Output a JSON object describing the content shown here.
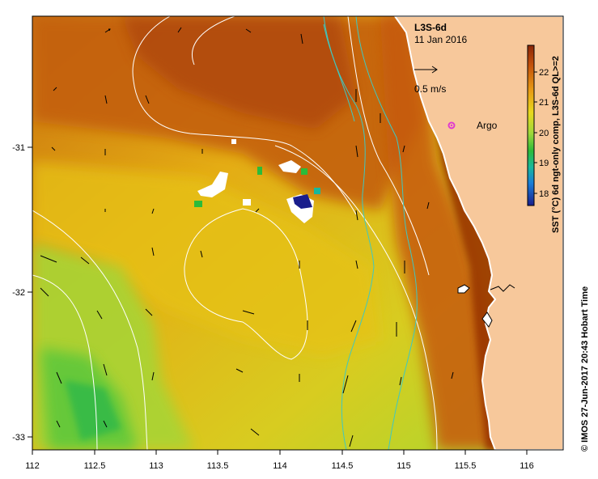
{
  "map": {
    "product": "L3S-6d",
    "date": "11 Jan 2016",
    "scale_arrow_label": "0.5 m/s",
    "argo_label": "Argo",
    "argo_marker_color": "#e03ad0",
    "colorbar": {
      "title": "SST (°C) 6d ngt-only comp, L3S-6d QL>=2",
      "ticks": [
        "22",
        "21",
        "20",
        "19",
        "18"
      ],
      "min": 17.5,
      "max": 22.8
    },
    "credit": "© IMOS 27-Jun-2017 20:43 Hobart Time",
    "x_ticks": [
      "112",
      "112.5",
      "113",
      "113.5",
      "114",
      "114.5",
      "115",
      "115.5",
      "116"
    ],
    "y_ticks": [
      "-31",
      "-32",
      "-33"
    ],
    "colors": {
      "land": "#f7c89b",
      "coast": "#ffffff",
      "contour": "#ffffff",
      "isobath": "#3fc8c0",
      "warm": "#b04a08",
      "mid": "#e8b010",
      "cool": "#80d040"
    }
  }
}
